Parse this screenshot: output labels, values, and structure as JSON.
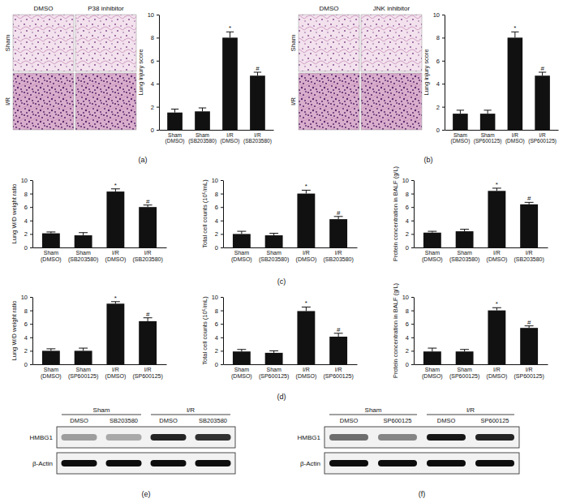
{
  "chart_data": [
    {
      "type": "bar",
      "ylabel": "Lung injury score",
      "categories": [
        "Sham (DMSO)",
        "Sham (SB203580)",
        "I/R (DMSO)",
        "I/R (SB203580)"
      ],
      "values": [
        1.5,
        1.6,
        8.0,
        4.7
      ],
      "errors": [
        0.3,
        0.3,
        0.5,
        0.3
      ],
      "annotations": [
        null,
        null,
        "*",
        "#"
      ],
      "color": "#111111",
      "ylim": [
        0,
        10
      ],
      "yticks": [
        0,
        2,
        4,
        6,
        8,
        10
      ]
    },
    {
      "type": "bar",
      "ylabel": "Lung injury score",
      "categories": [
        "Sham (DMSO)",
        "Sham (SP600125)",
        "I/R (DMSO)",
        "I/R (SP600125)"
      ],
      "values": [
        1.4,
        1.4,
        8.0,
        4.7
      ],
      "errors": [
        0.3,
        0.3,
        0.5,
        0.3
      ],
      "annotations": [
        null,
        null,
        "*",
        "#"
      ],
      "color": "#111111",
      "ylim": [
        0,
        10
      ],
      "yticks": [
        0,
        2,
        4,
        6,
        8,
        10
      ]
    },
    {
      "type": "bar",
      "ylabel": "Lung W/D weight ratio",
      "categories": [
        "Sham (DMSO)",
        "Sham (SB203580)",
        "I/R (DMSO)",
        "I/R (SB203580)"
      ],
      "values": [
        2.1,
        1.8,
        8.3,
        6.0
      ],
      "errors": [
        0.2,
        0.4,
        0.4,
        0.3
      ],
      "annotations": [
        null,
        null,
        "*",
        "#"
      ],
      "color": "#111111",
      "ylim": [
        0,
        10
      ],
      "yticks": [
        0,
        2,
        4,
        6,
        8,
        10
      ]
    },
    {
      "type": "bar",
      "ylabel": "Total cell counts (10⁵/mL)",
      "categories": [
        "Sham (DMSO)",
        "Sham (SB203580)",
        "I/R (DMSO)",
        "I/R (SB203580)"
      ],
      "values": [
        2.0,
        1.8,
        8.0,
        4.2
      ],
      "errors": [
        0.4,
        0.3,
        0.5,
        0.4
      ],
      "annotations": [
        null,
        null,
        "*",
        "#"
      ],
      "color": "#111111",
      "ylim": [
        0,
        10
      ],
      "yticks": [
        0,
        2,
        4,
        6,
        8,
        10
      ]
    },
    {
      "type": "bar",
      "ylabel": "Protein concentration in BALF (g/L)",
      "categories": [
        "Sham (DMSO)",
        "Sham (SB203580)",
        "I/R (DMSO)",
        "I/R (SB203580)"
      ],
      "values": [
        2.2,
        2.4,
        8.4,
        6.4
      ],
      "errors": [
        0.2,
        0.3,
        0.4,
        0.3
      ],
      "annotations": [
        null,
        null,
        "*",
        "#"
      ],
      "color": "#111111",
      "ylim": [
        0,
        10
      ],
      "yticks": [
        0,
        2,
        4,
        6,
        8,
        10
      ]
    },
    {
      "type": "bar",
      "ylabel": "Lung W/D weight ratio",
      "categories": [
        "Sham (DMSO)",
        "Sham (SP600125)",
        "I/R (DMSO)",
        "I/R (SP600125)"
      ],
      "values": [
        2.0,
        2.0,
        9.0,
        6.4
      ],
      "errors": [
        0.3,
        0.4,
        0.3,
        0.5
      ],
      "annotations": [
        null,
        null,
        "*",
        "#"
      ],
      "color": "#111111",
      "ylim": [
        0,
        10
      ],
      "yticks": [
        0,
        2,
        4,
        6,
        8,
        10
      ]
    },
    {
      "type": "bar",
      "ylabel": "Total cell counts (10⁵/mL)",
      "categories": [
        "Sham (DMSO)",
        "Sham (SP600125)",
        "I/R (DMSO)",
        "I/R (SP600125)"
      ],
      "values": [
        1.9,
        1.7,
        7.9,
        4.1
      ],
      "errors": [
        0.3,
        0.3,
        0.6,
        0.5
      ],
      "annotations": [
        null,
        null,
        "*",
        "#"
      ],
      "color": "#111111",
      "ylim": [
        0,
        10
      ],
      "yticks": [
        0,
        2,
        4,
        6,
        8,
        10
      ]
    },
    {
      "type": "bar",
      "ylabel": "Protein concentration in BALF (g/L)",
      "categories": [
        "Sham (DMSO)",
        "Sham (SP600125)",
        "I/R (DMSO)",
        "I/R (SP600125)"
      ],
      "values": [
        1.9,
        1.9,
        8.0,
        5.4
      ],
      "errors": [
        0.5,
        0.3,
        0.4,
        0.3
      ],
      "annotations": [
        null,
        null,
        "*",
        "#"
      ],
      "color": "#111111",
      "ylim": [
        0,
        10
      ],
      "yticks": [
        0,
        2,
        4,
        6,
        8,
        10
      ]
    }
  ],
  "images": [
    {
      "columns": [
        "DMSO",
        "P38 inhibitor"
      ],
      "rows": [
        "Sham",
        "I/R"
      ]
    },
    {
      "columns": [
        "DMSO",
        "JNK inhibitor"
      ],
      "rows": [
        "Sham",
        "I/R"
      ]
    }
  ],
  "blots": [
    {
      "groups": [
        {
          "label": "Sham",
          "span": 2
        },
        {
          "label": "I/R",
          "span": 2
        }
      ],
      "lanes": [
        "DMSO",
        "SB203580",
        "DMSO",
        "SB203580"
      ],
      "rows": [
        {
          "label": "HMBG1",
          "intensity": [
            0.35,
            0.3,
            0.85,
            0.8
          ]
        },
        {
          "label": "β-Actin",
          "intensity": [
            0.95,
            0.95,
            0.95,
            0.95
          ]
        }
      ]
    },
    {
      "groups": [
        {
          "label": "Sham",
          "span": 2
        },
        {
          "label": "I/R",
          "span": 2
        }
      ],
      "lanes": [
        "DMSO",
        "SP600125",
        "DMSO",
        "SP600125"
      ],
      "rows": [
        {
          "label": "HMBG1",
          "intensity": [
            0.55,
            0.45,
            0.9,
            0.85
          ]
        },
        {
          "label": "β-Actin",
          "intensity": [
            0.95,
            0.95,
            0.95,
            0.95
          ]
        }
      ]
    }
  ],
  "panel_labels": [
    "(a)",
    "(b)",
    "(c)",
    "(d)",
    "(e)",
    "(f)"
  ]
}
